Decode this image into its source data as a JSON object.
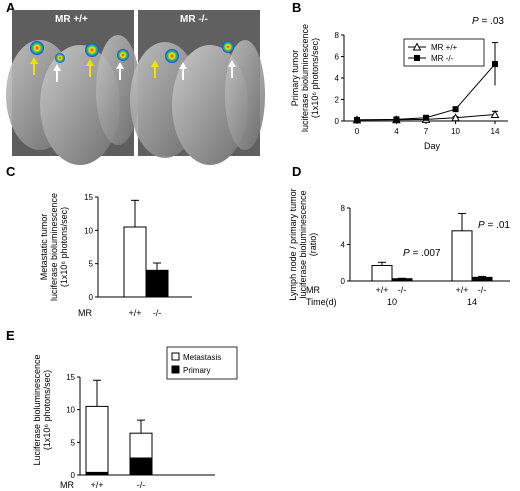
{
  "panels": {
    "A": {
      "label": "A",
      "images": [
        {
          "label": "MR +/+"
        },
        {
          "label": "MR -/-"
        }
      ],
      "colors": {
        "yellow_arrow": "#f2e000",
        "white_arrow": "#ffffff",
        "photo_bg": "#5a5a5a"
      }
    },
    "B": {
      "label": "B"
    },
    "C": {
      "label": "C"
    },
    "D": {
      "label": "D"
    },
    "E": {
      "label": "E"
    }
  },
  "chart_data": [
    {
      "id": "B",
      "type": "line",
      "ylabel_lines": [
        "Primary tumor",
        "luciferase bioluminescence",
        "(1x10⁶ photons/sec)"
      ],
      "xlabel": "Day",
      "x": [
        0,
        4,
        7,
        10,
        14
      ],
      "x_ticks": [
        "0",
        "4",
        "7",
        "10",
        "14"
      ],
      "ylim": [
        0,
        8
      ],
      "y_ticks": [
        "0",
        "2",
        "4",
        "6",
        "8"
      ],
      "p_value": "P = .03",
      "series": [
        {
          "name": "MR +/+",
          "marker": "open-triangle",
          "values": [
            0.1,
            0.12,
            0.15,
            0.3,
            0.6
          ],
          "errors": [
            0.05,
            0.05,
            0.08,
            0.1,
            0.3
          ]
        },
        {
          "name": "MR -/-",
          "marker": "filled-square",
          "values": [
            0.1,
            0.15,
            0.3,
            1.1,
            5.3
          ],
          "errors": [
            0.05,
            0.05,
            0.1,
            0.2,
            2.0
          ]
        }
      ],
      "legend": "top-right"
    },
    {
      "id": "C",
      "type": "bar",
      "ylabel_lines": [
        "Metastatic tumor",
        "luciferase bioluminescence",
        "(1x10⁶ photons/sec)"
      ],
      "categories": [
        "+/+",
        "-/-"
      ],
      "category_prefix": "MR",
      "values": [
        10.5,
        4.0
      ],
      "errors": [
        4.0,
        1.1
      ],
      "fills": [
        "#ffffff",
        "#000000"
      ],
      "ylim": [
        0,
        15
      ],
      "y_ticks": [
        "0",
        "5",
        "10",
        "15"
      ]
    },
    {
      "id": "D",
      "type": "bar",
      "ylabel_lines": [
        "Lymph node / primary tumor",
        "luciferase bioluminescence",
        "(ratio)"
      ],
      "groups": [
        {
          "time": "10",
          "p_value": "P = .007",
          "categories": [
            "+/+",
            "-/-"
          ],
          "values": [
            1.7,
            0.25
          ],
          "errors": [
            0.35,
            0.05
          ]
        },
        {
          "time": "14",
          "p_value": "P = .01",
          "categories": [
            "+/+",
            "-/-"
          ],
          "values": [
            5.5,
            0.4
          ],
          "errors": [
            1.9,
            0.1
          ]
        }
      ],
      "row_labels": [
        "MR",
        "Time(d)"
      ],
      "fills": [
        "#ffffff",
        "#000000"
      ],
      "ylim": [
        0,
        8
      ],
      "y_ticks": [
        "0",
        "4",
        "8"
      ]
    },
    {
      "id": "E",
      "type": "bar",
      "stacked": true,
      "ylabel_lines": [
        "Luciferase bioluminescence",
        "(1x10⁶ photons/sec)"
      ],
      "categories": [
        "+/+",
        "-/-"
      ],
      "category_prefix": "MR",
      "series": [
        {
          "name": "Primary",
          "values": [
            0.4,
            2.6
          ],
          "fill": "#000000"
        },
        {
          "name": "Metastasis",
          "values": [
            10.1,
            3.8
          ],
          "fill": "#ffffff"
        }
      ],
      "legend_order": [
        "Metastasis",
        "Primary"
      ],
      "errors": [
        4.0,
        2.0
      ],
      "ylim": [
        0,
        15
      ],
      "y_ticks": [
        "0",
        "5",
        "10",
        "15"
      ],
      "legend": "top-right"
    }
  ]
}
